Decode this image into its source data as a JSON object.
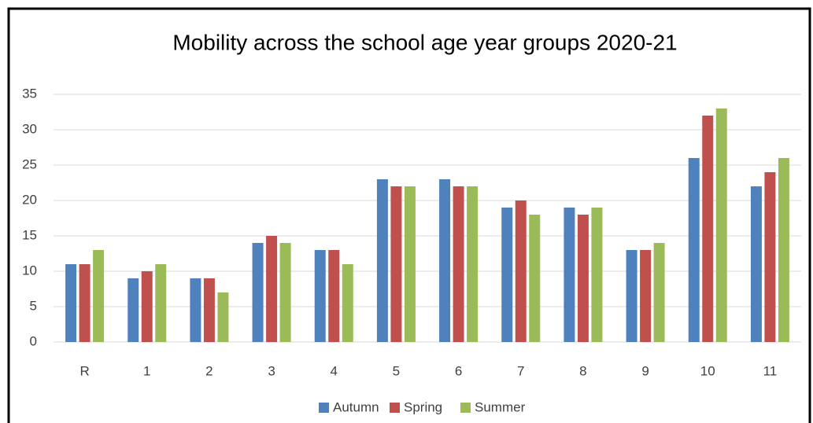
{
  "chart_data": {
    "type": "bar",
    "title": "Mobility across the school age year groups 2020-21",
    "categories": [
      "R",
      "1",
      "2",
      "3",
      "4",
      "5",
      "6",
      "7",
      "8",
      "9",
      "10",
      "11"
    ],
    "series": [
      {
        "name": "Autumn",
        "color": "#4f81bd",
        "values": [
          11,
          9,
          9,
          14,
          13,
          23,
          23,
          19,
          19,
          13,
          26,
          22
        ]
      },
      {
        "name": "Spring",
        "color": "#c0504d",
        "values": [
          11,
          10,
          9,
          15,
          13,
          22,
          22,
          20,
          18,
          13,
          32,
          24
        ]
      },
      {
        "name": "Summer",
        "color": "#9bbb59",
        "values": [
          13,
          11,
          7,
          14,
          11,
          22,
          22,
          18,
          19,
          14,
          33,
          26
        ]
      }
    ],
    "ylim": [
      0,
      35
    ],
    "yticks": [
      0,
      5,
      10,
      15,
      20,
      25,
      30,
      35
    ],
    "grid": true,
    "legend": "bottom"
  }
}
